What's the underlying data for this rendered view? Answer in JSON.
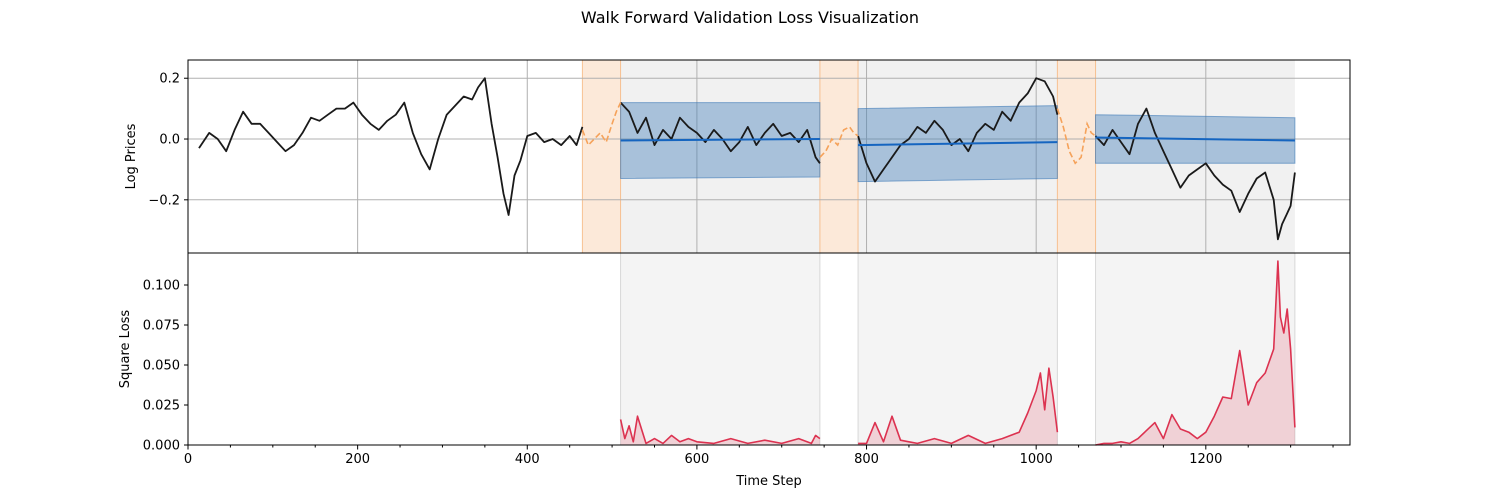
{
  "figure": {
    "title": "Walk Forward Validation Loss Visualization"
  },
  "chart_data": [
    {
      "type": "line",
      "panel": "top",
      "ylabel": "Log Prices",
      "xlim": [
        0,
        1370
      ],
      "ylim": [
        -0.375,
        0.26
      ],
      "xticks": [
        200,
        400,
        600,
        800,
        1000,
        1200
      ],
      "yticks": [
        {
          "value": 0.2,
          "label": "0.2"
        },
        {
          "value": 0.0,
          "label": "0.0"
        },
        {
          "value": -0.2,
          "label": "−0.2"
        }
      ],
      "grid": true,
      "colors": {
        "actual": "#1a1a1a",
        "context": "#f5a25a",
        "forecast": "#1565c0",
        "band": "#3d7ab8",
        "context_shade": "#fbe1cc",
        "test_shade": "#e0e0e0"
      },
      "context_windows": [
        [
          465,
          510
        ],
        [
          745,
          790
        ],
        [
          1025,
          1070
        ]
      ],
      "test_windows": [
        [
          510,
          745
        ],
        [
          790,
          1025
        ],
        [
          1070,
          1305
        ]
      ],
      "series": [
        {
          "role": "actual",
          "segments": [
            {
              "x": [
                13,
                25,
                35,
                45,
                55,
                65,
                75,
                85,
                95,
                105,
                115,
                125,
                135,
                145,
                155,
                165,
                175,
                185,
                195,
                205,
                215,
                225,
                235,
                245,
                255,
                265,
                275,
                285,
                295,
                305,
                315,
                325,
                335,
                342,
                350,
                358,
                365,
                372,
                378,
                385,
                392,
                400,
                410,
                420,
                430,
                440,
                450,
                458,
                465
              ],
              "y": [
                -0.03,
                0.02,
                0.0,
                -0.04,
                0.03,
                0.09,
                0.05,
                0.05,
                0.02,
                -0.01,
                -0.04,
                -0.02,
                0.02,
                0.07,
                0.06,
                0.08,
                0.1,
                0.1,
                0.12,
                0.08,
                0.05,
                0.03,
                0.06,
                0.08,
                0.12,
                0.02,
                -0.05,
                -0.1,
                0.0,
                0.08,
                0.11,
                0.14,
                0.13,
                0.17,
                0.2,
                0.05,
                -0.06,
                -0.18,
                -0.25,
                -0.12,
                -0.07,
                0.01,
                0.02,
                -0.01,
                0.0,
                -0.02,
                0.01,
                -0.02,
                0.04
              ]
            },
            {
              "x": [
                510,
                520,
                530,
                540,
                550,
                560,
                570,
                580,
                590,
                600,
                610,
                620,
                630,
                640,
                650,
                660,
                670,
                680,
                690,
                700,
                710,
                720,
                730,
                740,
                745
              ],
              "y": [
                0.12,
                0.09,
                0.02,
                0.07,
                -0.02,
                0.03,
                0.0,
                0.07,
                0.04,
                0.02,
                -0.01,
                0.03,
                0.0,
                -0.04,
                -0.01,
                0.04,
                -0.02,
                0.02,
                0.05,
                0.01,
                0.02,
                -0.01,
                0.03,
                -0.06,
                -0.08
              ]
            },
            {
              "x": [
                790,
                800,
                810,
                820,
                830,
                840,
                850,
                860,
                870,
                880,
                890,
                900,
                910,
                920,
                930,
                940,
                950,
                960,
                970,
                980,
                990,
                1000,
                1010,
                1020,
                1025
              ],
              "y": [
                0.01,
                -0.08,
                -0.14,
                -0.1,
                -0.06,
                -0.02,
                0.0,
                0.04,
                0.02,
                0.06,
                0.03,
                -0.02,
                0.0,
                -0.04,
                0.02,
                0.05,
                0.03,
                0.09,
                0.06,
                0.12,
                0.15,
                0.2,
                0.19,
                0.14,
                0.08
              ]
            },
            {
              "x": [
                1070,
                1080,
                1090,
                1100,
                1110,
                1120,
                1130,
                1140,
                1150,
                1160,
                1170,
                1180,
                1190,
                1200,
                1210,
                1220,
                1230,
                1240,
                1250,
                1260,
                1270,
                1280,
                1285,
                1290,
                1295,
                1300,
                1305
              ],
              "y": [
                0.01,
                -0.02,
                0.03,
                -0.01,
                -0.05,
                0.05,
                0.1,
                0.02,
                -0.04,
                -0.1,
                -0.16,
                -0.12,
                -0.1,
                -0.08,
                -0.12,
                -0.15,
                -0.17,
                -0.24,
                -0.18,
                -0.13,
                -0.11,
                -0.2,
                -0.33,
                -0.28,
                -0.25,
                -0.22,
                -0.11
              ]
            }
          ]
        },
        {
          "role": "context",
          "segments": [
            {
              "x": [
                465,
                472,
                479,
                486,
                493,
                500,
                505,
                510
              ],
              "y": [
                0.03,
                -0.02,
                0.0,
                0.02,
                -0.01,
                0.05,
                0.09,
                0.12
              ]
            },
            {
              "x": [
                745,
                752,
                759,
                766,
                773,
                780,
                785,
                790
              ],
              "y": [
                -0.06,
                -0.04,
                0.0,
                -0.02,
                0.03,
                0.04,
                0.02,
                0.01
              ]
            },
            {
              "x": [
                1025,
                1032,
                1039,
                1046,
                1053,
                1060,
                1065,
                1070
              ],
              "y": [
                0.1,
                0.04,
                -0.04,
                -0.08,
                -0.06,
                0.05,
                0.02,
                0.01
              ]
            }
          ]
        },
        {
          "role": "forecast",
          "segments": [
            {
              "x": [
                510,
                745
              ],
              "y": [
                -0.005,
                0.0
              ],
              "lower": [
                -0.13,
                -0.125
              ],
              "upper": [
                0.12,
                0.12
              ]
            },
            {
              "x": [
                790,
                1025
              ],
              "y": [
                -0.02,
                -0.01
              ],
              "lower": [
                -0.14,
                -0.13
              ],
              "upper": [
                0.1,
                0.11
              ]
            },
            {
              "x": [
                1070,
                1305
              ],
              "y": [
                0.005,
                -0.005
              ],
              "lower": [
                -0.08,
                -0.08
              ],
              "upper": [
                0.08,
                0.07
              ]
            }
          ]
        }
      ]
    },
    {
      "type": "line",
      "panel": "bottom",
      "xlabel": "Time Step",
      "ylabel": "Square Loss",
      "xlim": [
        0,
        1370
      ],
      "ylim": [
        0,
        0.12
      ],
      "xticks": [
        {
          "value": 0,
          "label": "0"
        },
        {
          "value": 200,
          "label": "200"
        },
        {
          "value": 400,
          "label": "400"
        },
        {
          "value": 600,
          "label": "600"
        },
        {
          "value": 800,
          "label": "800"
        },
        {
          "value": 1000,
          "label": "1000"
        },
        {
          "value": 1200,
          "label": "1200"
        }
      ],
      "yticks": [
        {
          "value": 0.0,
          "label": "0.000"
        },
        {
          "value": 0.025,
          "label": "0.025"
        },
        {
          "value": 0.05,
          "label": "0.050"
        },
        {
          "value": 0.075,
          "label": "0.075"
        },
        {
          "value": 0.1,
          "label": "0.100"
        }
      ],
      "grid": false,
      "colors": {
        "loss": "#dc3250",
        "test_shade": "#ebebeb"
      },
      "test_windows": [
        [
          510,
          745
        ],
        [
          790,
          1025
        ],
        [
          1070,
          1305
        ]
      ],
      "series": [
        {
          "role": "loss",
          "segments": [
            {
              "x": [
                510,
                515,
                520,
                525,
                530,
                540,
                550,
                560,
                570,
                580,
                590,
                600,
                620,
                640,
                660,
                680,
                700,
                720,
                735,
                740,
                745
              ],
              "y": [
                0.016,
                0.004,
                0.012,
                0.002,
                0.018,
                0.001,
                0.004,
                0.001,
                0.006,
                0.002,
                0.004,
                0.002,
                0.001,
                0.004,
                0.001,
                0.003,
                0.001,
                0.004,
                0.001,
                0.006,
                0.004
              ]
            },
            {
              "x": [
                790,
                800,
                810,
                820,
                830,
                840,
                850,
                860,
                880,
                900,
                920,
                940,
                960,
                980,
                990,
                1000,
                1005,
                1010,
                1015,
                1020,
                1025
              ],
              "y": [
                0.001,
                0.001,
                0.014,
                0.002,
                0.018,
                0.003,
                0.002,
                0.001,
                0.004,
                0.001,
                0.006,
                0.001,
                0.004,
                0.008,
                0.02,
                0.034,
                0.045,
                0.022,
                0.048,
                0.03,
                0.008
              ]
            },
            {
              "x": [
                1070,
                1080,
                1090,
                1100,
                1110,
                1120,
                1130,
                1140,
                1150,
                1160,
                1170,
                1180,
                1190,
                1200,
                1210,
                1220,
                1230,
                1240,
                1250,
                1260,
                1270,
                1280,
                1285,
                1288,
                1292,
                1296,
                1300,
                1305
              ],
              "y": [
                0.0,
                0.001,
                0.001,
                0.002,
                0.001,
                0.004,
                0.009,
                0.014,
                0.004,
                0.019,
                0.01,
                0.008,
                0.004,
                0.008,
                0.018,
                0.03,
                0.029,
                0.059,
                0.025,
                0.039,
                0.045,
                0.06,
                0.115,
                0.08,
                0.07,
                0.085,
                0.06,
                0.011
              ]
            }
          ]
        }
      ]
    }
  ]
}
